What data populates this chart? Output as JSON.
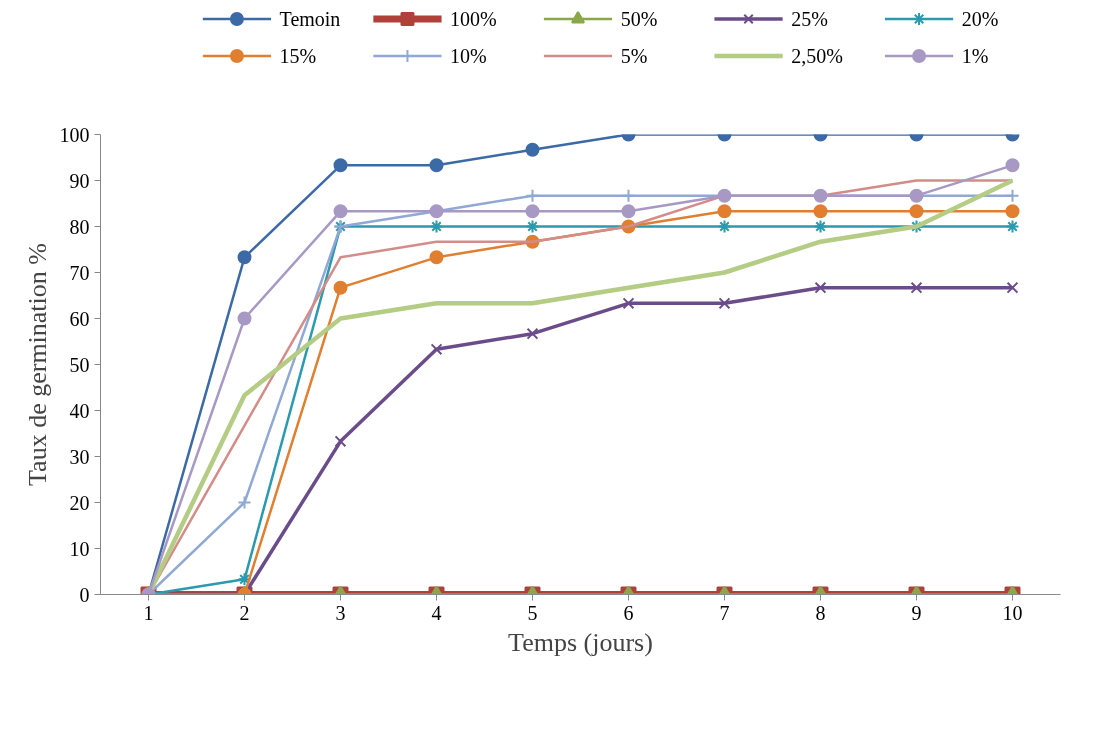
{
  "chart_data": {
    "type": "line",
    "xlabel": "Temps (jours)",
    "ylabel": "Taux de germination %",
    "x": [
      1,
      2,
      3,
      4,
      5,
      6,
      7,
      8,
      9,
      10
    ],
    "xlim": [
      0.5,
      10.5
    ],
    "xticks": [
      1,
      2,
      3,
      4,
      5,
      6,
      7,
      8,
      9,
      10
    ],
    "ylim": [
      0,
      100
    ],
    "yticks": [
      0,
      10,
      20,
      30,
      40,
      50,
      60,
      70,
      80,
      90,
      100
    ],
    "grid": false,
    "legend": "top",
    "series": [
      {
        "name": "Temoin",
        "color": "#3c6aa6",
        "marker": "circle",
        "values": [
          0,
          73.3,
          93.3,
          93.3,
          96.7,
          100,
          100,
          100,
          100,
          100
        ]
      },
      {
        "name": "100%",
        "color": "#b0403a",
        "marker": "square",
        "values": [
          0,
          0,
          0,
          0,
          0,
          0,
          0,
          0,
          0,
          0
        ]
      },
      {
        "name": "50%",
        "color": "#8aa84a",
        "marker": "triangle",
        "values": [
          0,
          0,
          0,
          0,
          0,
          0,
          0,
          0,
          0,
          0
        ]
      },
      {
        "name": "25%",
        "color": "#6b4c8a",
        "marker": "cross",
        "values": [
          0,
          0,
          33.3,
          53.3,
          56.7,
          63.3,
          63.3,
          66.7,
          66.7,
          66.7
        ]
      },
      {
        "name": "20%",
        "color": "#2b9aaf",
        "marker": "cross",
        "values": [
          0,
          3.3,
          80,
          80,
          80,
          80,
          80,
          80,
          80,
          80
        ]
      },
      {
        "name": "15%",
        "color": "#e07f2f",
        "marker": "circle",
        "values": [
          0,
          0,
          66.7,
          73.3,
          76.7,
          80,
          83.3,
          83.3,
          83.3,
          83.3
        ]
      },
      {
        "name": "10%",
        "color": "#8fa8d4",
        "marker": "cross",
        "values": [
          0,
          20,
          80,
          83.3,
          86.7,
          86.7,
          86.7,
          86.7,
          86.7,
          86.7
        ]
      },
      {
        "name": "5%",
        "color": "#d48c88",
        "marker": "none",
        "values": [
          0,
          36.7,
          73.3,
          76.7,
          76.7,
          80,
          86.7,
          86.7,
          90,
          90
        ]
      },
      {
        "name": "2,50%",
        "color": "#b4cc84",
        "marker": "none",
        "values": [
          0,
          43.3,
          60,
          63.3,
          63.3,
          66.7,
          70,
          76.7,
          80,
          90
        ]
      },
      {
        "name": "1%",
        "color": "#a899c4",
        "marker": "circle",
        "values": [
          0,
          60,
          83.3,
          83.3,
          83.3,
          83.3,
          86.7,
          86.7,
          86.7,
          93.3
        ]
      }
    ]
  }
}
